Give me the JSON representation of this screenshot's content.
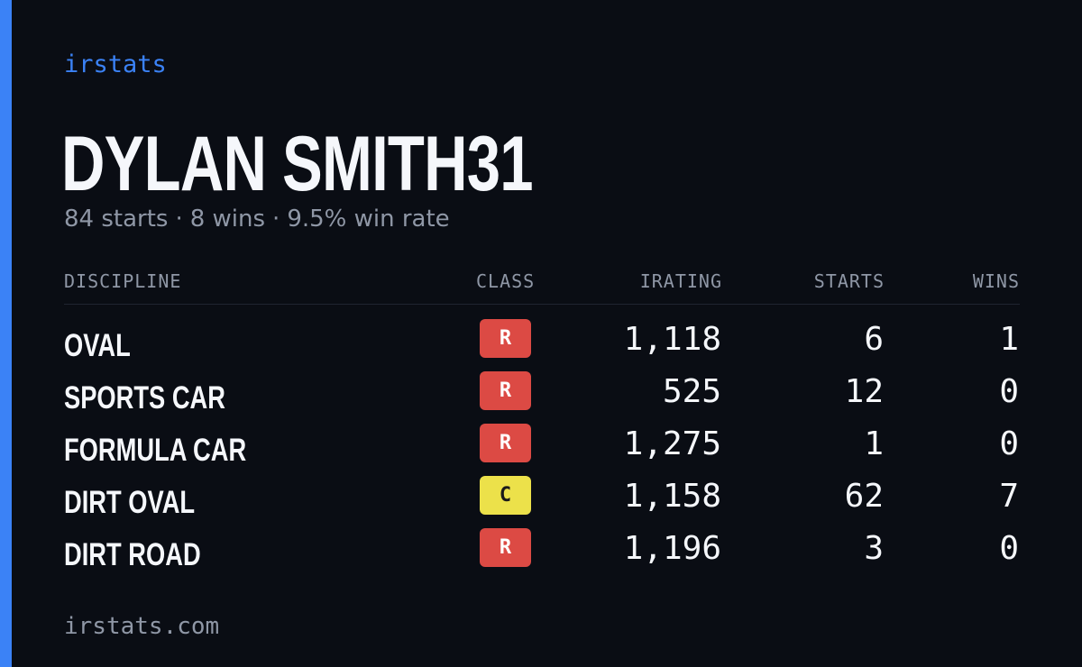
{
  "brand": "irstats",
  "player": {
    "name": "DYLAN SMITH31",
    "starts_text": "84 starts",
    "wins_text": "8 wins",
    "win_rate_text": "9.5% win rate",
    "separator": "·"
  },
  "table": {
    "headers": {
      "discipline": "DISCIPLINE",
      "class": "CLASS",
      "irating": "IRATING",
      "starts": "STARTS",
      "wins": "WINS"
    },
    "rows": [
      {
        "discipline": "OVAL",
        "class": "R",
        "irating": "1,118",
        "starts": "6",
        "wins": "1"
      },
      {
        "discipline": "SPORTS CAR",
        "class": "R",
        "irating": "525",
        "starts": "12",
        "wins": "0"
      },
      {
        "discipline": "FORMULA CAR",
        "class": "R",
        "irating": "1,275",
        "starts": "1",
        "wins": "0"
      },
      {
        "discipline": "DIRT OVAL",
        "class": "C",
        "irating": "1,158",
        "starts": "62",
        "wins": "7"
      },
      {
        "discipline": "DIRT ROAD",
        "class": "R",
        "irating": "1,196",
        "starts": "3",
        "wins": "0"
      }
    ]
  },
  "footer": "irstats.com",
  "colors": {
    "background": "#0a0d14",
    "accent": "#3b82f6",
    "text_primary": "#f5f7fb",
    "text_muted": "#8f97a6",
    "class_r": "#dc4a44",
    "class_r_text": "#ffffff",
    "class_c": "#ece14a",
    "class_c_text": "#1a1a1a"
  }
}
